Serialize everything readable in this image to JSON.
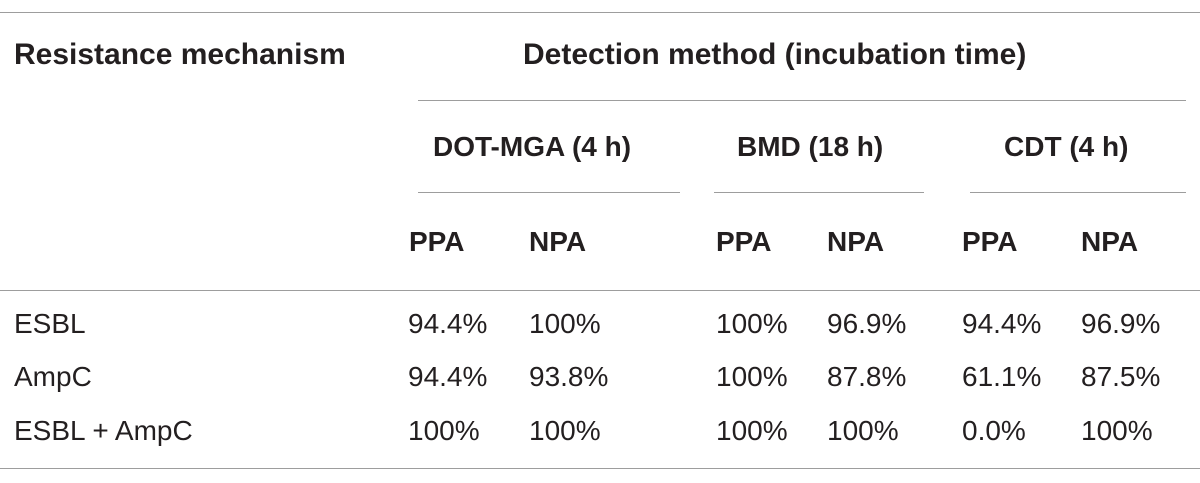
{
  "table": {
    "header": {
      "row_label": "Resistance mechanism",
      "group_label": "Detection method (incubation time)",
      "methods": [
        "DOT-MGA (4 h)",
        "BMD (18 h)",
        "CDT (4 h)"
      ],
      "metrics": [
        "PPA",
        "NPA",
        "PPA",
        "NPA",
        "PPA",
        "NPA"
      ]
    },
    "rows": [
      {
        "label": "ESBL",
        "values": [
          "94.4%",
          "100%",
          "100%",
          "96.9%",
          "94.4%",
          "96.9%"
        ]
      },
      {
        "label": "AmpC",
        "values": [
          "94.4%",
          "93.8%",
          "100%",
          "87.8%",
          "61.1%",
          "87.5%"
        ]
      },
      {
        "label": "ESBL + AmpC",
        "values": [
          "100%",
          "100%",
          "100%",
          "100%",
          "0.0%",
          "100%"
        ]
      }
    ]
  }
}
